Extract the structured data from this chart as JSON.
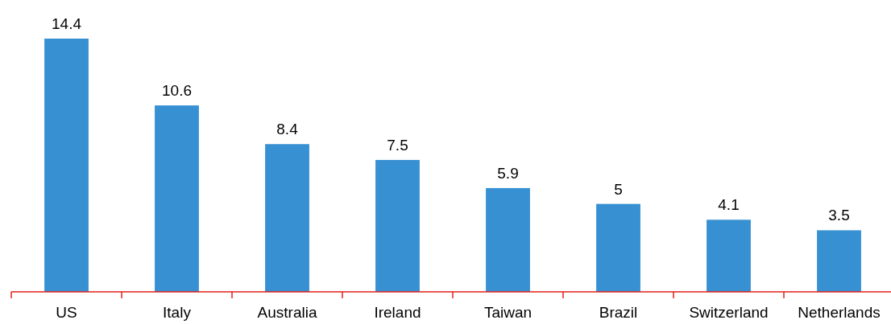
{
  "chart_data": {
    "type": "bar",
    "categories": [
      "US",
      "Italy",
      "Australia",
      "Ireland",
      "Taiwan",
      "Brazil",
      "Switzerland",
      "Netherlands"
    ],
    "values": [
      14.4,
      10.6,
      8.4,
      7.5,
      5.9,
      5,
      4.1,
      3.5
    ],
    "color": "#3690d2",
    "data_labels": true
  }
}
